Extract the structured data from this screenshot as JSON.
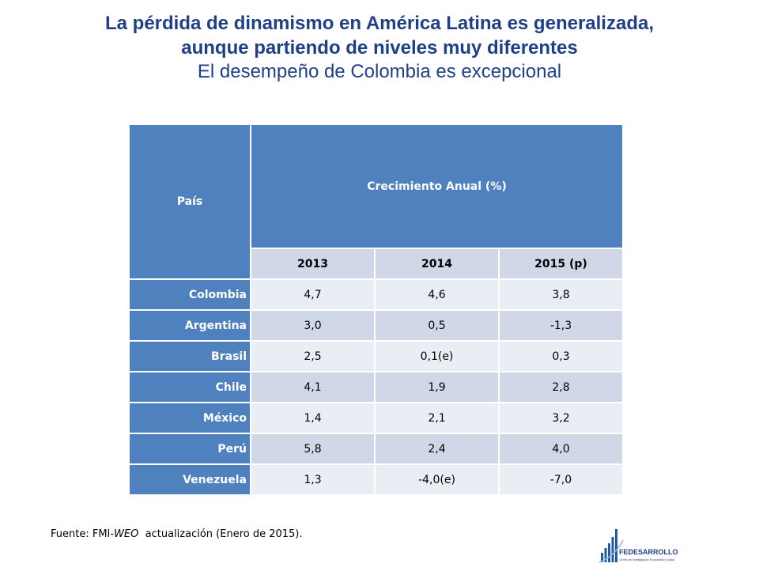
{
  "title": {
    "line1": "La pérdida de dinamismo en América Latina es generalizada,",
    "line2": "aunque partiendo de niveles muy diferentes",
    "subtitle": "El desempeño de Colombia es excepcional"
  },
  "table": {
    "country_header": "País",
    "group_header": "Crecimiento Anual (%)",
    "years": [
      "2013",
      "2014",
      "2015 (p)"
    ],
    "rows": [
      {
        "country": "Colombia",
        "values": [
          "4,7",
          "4,6",
          "3,8"
        ]
      },
      {
        "country": "Argentina",
        "values": [
          "3,0",
          "0,5",
          "-1,3"
        ]
      },
      {
        "country": "Brasil",
        "values": [
          "2,5",
          "0,1(e)",
          "0,3"
        ]
      },
      {
        "country": "Chile",
        "values": [
          "4,1",
          "1,9",
          "2,8"
        ]
      },
      {
        "country": "México",
        "values": [
          "1,4",
          "2,1",
          "3,2"
        ]
      },
      {
        "country": "Perú",
        "values": [
          "5,8",
          "2,4",
          "4,0"
        ]
      },
      {
        "country": "Venezuela",
        "values": [
          "1,3",
          "-4,0(e)",
          "-7,0"
        ]
      }
    ]
  },
  "source": {
    "prefix": "Fuente: FMI-",
    "italic": "WEO",
    "suffix": "  actualización (Enero de 2015)."
  },
  "logo": {
    "name": "FEDESARROLLO",
    "tagline": "Centro de Investigación Económica y Social"
  },
  "colors": {
    "title": "#1f3f86",
    "header_blue": "#4e81bd",
    "band_dark": "#d0d8e8",
    "band_light": "#e9edf4"
  }
}
